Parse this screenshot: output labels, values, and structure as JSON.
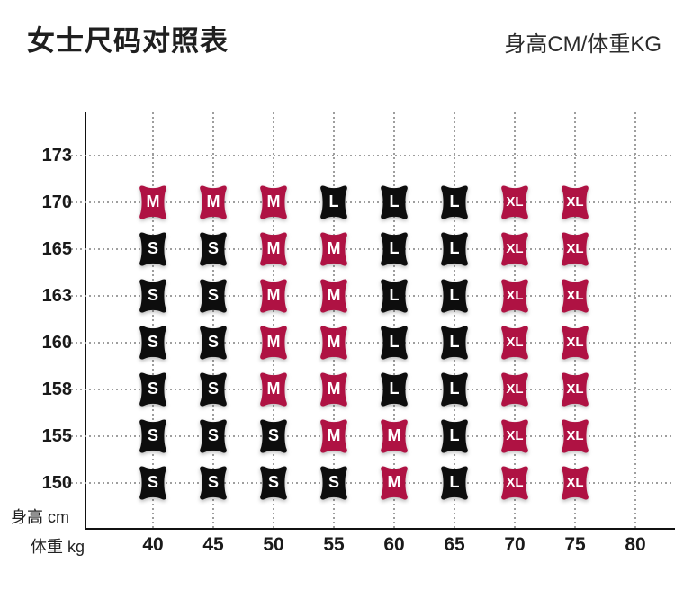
{
  "header": {
    "title": "女士尺码对照表",
    "unit_note": "身高CM/体重KG"
  },
  "chart_data": {
    "type": "heatmap",
    "title": "女士尺码对照表",
    "subtitle": "身高CM/体重KG",
    "x_axis": {
      "label": "体重 kg",
      "ticks": [
        "40",
        "45",
        "50",
        "55",
        "60",
        "65",
        "70",
        "75",
        "80"
      ]
    },
    "y_axis": {
      "label": "身高 cm",
      "ticks": [
        "173",
        "170",
        "165",
        "163",
        "160",
        "158",
        "155",
        "150"
      ]
    },
    "grid": "dotted",
    "size_colors": {
      "S": "#0d0d0d",
      "M": "#af1243",
      "L": "#0d0d0d",
      "XL": "#af1243"
    },
    "badge_text_color": "#ffffff",
    "rows": [
      {
        "height": "173",
        "sizes": [
          null,
          null,
          null,
          null,
          null,
          null,
          null,
          null
        ]
      },
      {
        "height": "170",
        "sizes": [
          "M",
          "M",
          "M",
          "L",
          "L",
          "L",
          "XL",
          "XL"
        ]
      },
      {
        "height": "165",
        "sizes": [
          "S",
          "S",
          "M",
          "M",
          "L",
          "L",
          "XL",
          "XL"
        ]
      },
      {
        "height": "163",
        "sizes": [
          "S",
          "S",
          "M",
          "M",
          "L",
          "L",
          "XL",
          "XL"
        ]
      },
      {
        "height": "160",
        "sizes": [
          "S",
          "S",
          "M",
          "M",
          "L",
          "L",
          "XL",
          "XL"
        ]
      },
      {
        "height": "158",
        "sizes": [
          "S",
          "S",
          "M",
          "M",
          "L",
          "L",
          "XL",
          "XL"
        ]
      },
      {
        "height": "155",
        "sizes": [
          "S",
          "S",
          "S",
          "M",
          "M",
          "L",
          "XL",
          "XL"
        ]
      },
      {
        "height": "150",
        "sizes": [
          "S",
          "S",
          "S",
          "S",
          "M",
          "L",
          "XL",
          "XL"
        ]
      }
    ],
    "badge_weight_columns": [
      "40",
      "45",
      "50",
      "55",
      "60",
      "65",
      "70",
      "75"
    ]
  }
}
